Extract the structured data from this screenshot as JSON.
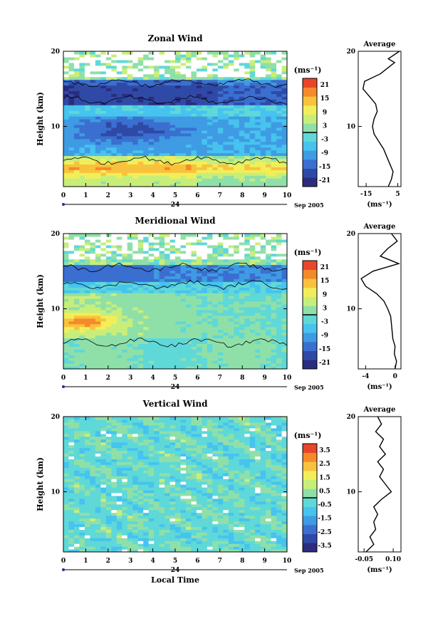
{
  "colors": {
    "wind_scale": [
      "#2b2c7e",
      "#2f4aa6",
      "#3a6fd0",
      "#3f9be3",
      "#46c3ee",
      "#5fd8d8",
      "#8fe0a8",
      "#c8ee7a",
      "#f2ee5a",
      "#f9c23c",
      "#f58a2a",
      "#e8452b"
    ],
    "background": "#ffffff",
    "contour": "#000000"
  },
  "chart_data": [
    {
      "type": "heatmap",
      "title": "Zonal Wind",
      "ylabel": "Height (km)",
      "y_ticks": [
        "20",
        "10"
      ],
      "xlim": [
        0,
        10
      ],
      "ylim": [
        2,
        20
      ],
      "x_ticks": [
        "0",
        "1",
        "2",
        "3",
        "4",
        "5",
        "6",
        "7",
        "8",
        "9",
        "10"
      ],
      "date_label": "24",
      "month_label": "Sep 2005",
      "colorbar": {
        "unit": "(ms⁻¹)",
        "labels": [
          "21",
          "15",
          "9",
          "3",
          "-3",
          "-9",
          "-15",
          "-21"
        ],
        "range": [
          -24,
          24
        ]
      },
      "average_panel": {
        "title": "Average",
        "xlabel": "(ms⁻¹)",
        "x_tick_labels": [
          "-15",
          "5"
        ],
        "xlim": [
          -20,
          7
        ],
        "y_tick_labels": [
          "20",
          "10"
        ],
        "ylim": [
          2,
          20
        ],
        "profile": [
          [
            -1,
            2
          ],
          [
            1,
            3
          ],
          [
            2,
            4
          ],
          [
            0,
            5
          ],
          [
            -2,
            6
          ],
          [
            -4,
            7
          ],
          [
            -7,
            8
          ],
          [
            -10,
            9
          ],
          [
            -11,
            10
          ],
          [
            -10,
            11
          ],
          [
            -8,
            12
          ],
          [
            -9,
            13
          ],
          [
            -13,
            14
          ],
          [
            -17,
            15
          ],
          [
            -16,
            16
          ],
          [
            -6,
            17
          ],
          [
            0,
            18
          ],
          [
            3,
            18.5
          ],
          [
            -1,
            19
          ],
          [
            6,
            20
          ]
        ]
      }
    },
    {
      "type": "heatmap",
      "title": "Meridional Wind",
      "ylabel": "Height (km)",
      "y_ticks": [
        "20",
        "10"
      ],
      "xlim": [
        0,
        10
      ],
      "ylim": [
        2,
        20
      ],
      "x_ticks": [
        "0",
        "1",
        "2",
        "3",
        "4",
        "5",
        "6",
        "7",
        "8",
        "9",
        "10"
      ],
      "date_label": "24",
      "month_label": "Sep 2005",
      "colorbar": {
        "unit": "(ms⁻¹)",
        "labels": [
          "21",
          "15",
          "9",
          "3",
          "-3",
          "-9",
          "-15",
          "-21"
        ],
        "range": [
          -24,
          24
        ]
      },
      "average_panel": {
        "title": "Average",
        "xlabel": "(ms⁻¹)",
        "x_tick_labels": [
          "-4",
          "0"
        ],
        "xlim": [
          -5,
          0.8
        ],
        "y_tick_labels": [
          "20",
          "10"
        ],
        "ylim": [
          2,
          20
        ],
        "profile": [
          [
            0,
            2
          ],
          [
            0.2,
            3
          ],
          [
            -0.1,
            4
          ],
          [
            0,
            5
          ],
          [
            -0.3,
            6
          ],
          [
            -0.4,
            7
          ],
          [
            -0.5,
            8
          ],
          [
            -0.6,
            9
          ],
          [
            -1,
            10
          ],
          [
            -1.5,
            11
          ],
          [
            -2.5,
            12
          ],
          [
            -4,
            13
          ],
          [
            -4.6,
            14
          ],
          [
            -3,
            15
          ],
          [
            0.5,
            16
          ],
          [
            -2,
            17
          ],
          [
            -1,
            18
          ],
          [
            0.3,
            19
          ],
          [
            -0.5,
            20
          ]
        ]
      }
    },
    {
      "type": "heatmap",
      "title": "Vertical Wind",
      "ylabel": "Height (km)",
      "y_ticks": [
        "20",
        "10"
      ],
      "xlabel": "Local Time",
      "xlim": [
        0,
        10
      ],
      "ylim": [
        2,
        20
      ],
      "x_ticks": [
        "0",
        "1",
        "2",
        "3",
        "4",
        "5",
        "6",
        "7",
        "8",
        "9",
        "10"
      ],
      "date_label": "24",
      "month_label": "Sep 2005",
      "colorbar": {
        "unit": "(ms⁻¹)",
        "labels": [
          "3.5",
          "2.5",
          "1.5",
          "0.5",
          "-0.5",
          "-1.5",
          "-2.5",
          "-3.5"
        ],
        "range": [
          -4,
          4
        ]
      },
      "average_panel": {
        "title": "Average",
        "xlabel": "(ms⁻¹)",
        "x_tick_labels": [
          "-0.05",
          "0.10"
        ],
        "xlim": [
          -0.08,
          0.14
        ],
        "y_tick_labels": [
          "20",
          "10"
        ],
        "ylim": [
          2,
          20
        ],
        "profile": [
          [
            -0.04,
            2
          ],
          [
            0.0,
            3
          ],
          [
            -0.02,
            4
          ],
          [
            0.01,
            5
          ],
          [
            0.0,
            6
          ],
          [
            0.02,
            7
          ],
          [
            0.0,
            8
          ],
          [
            0.04,
            9
          ],
          [
            0.09,
            10
          ],
          [
            0.06,
            11
          ],
          [
            0.03,
            12
          ],
          [
            0.05,
            13
          ],
          [
            0.02,
            14
          ],
          [
            0.06,
            15
          ],
          [
            0.03,
            16
          ],
          [
            0.05,
            17
          ],
          [
            0.01,
            18
          ],
          [
            0.04,
            19
          ],
          [
            0.02,
            20
          ]
        ]
      }
    }
  ]
}
